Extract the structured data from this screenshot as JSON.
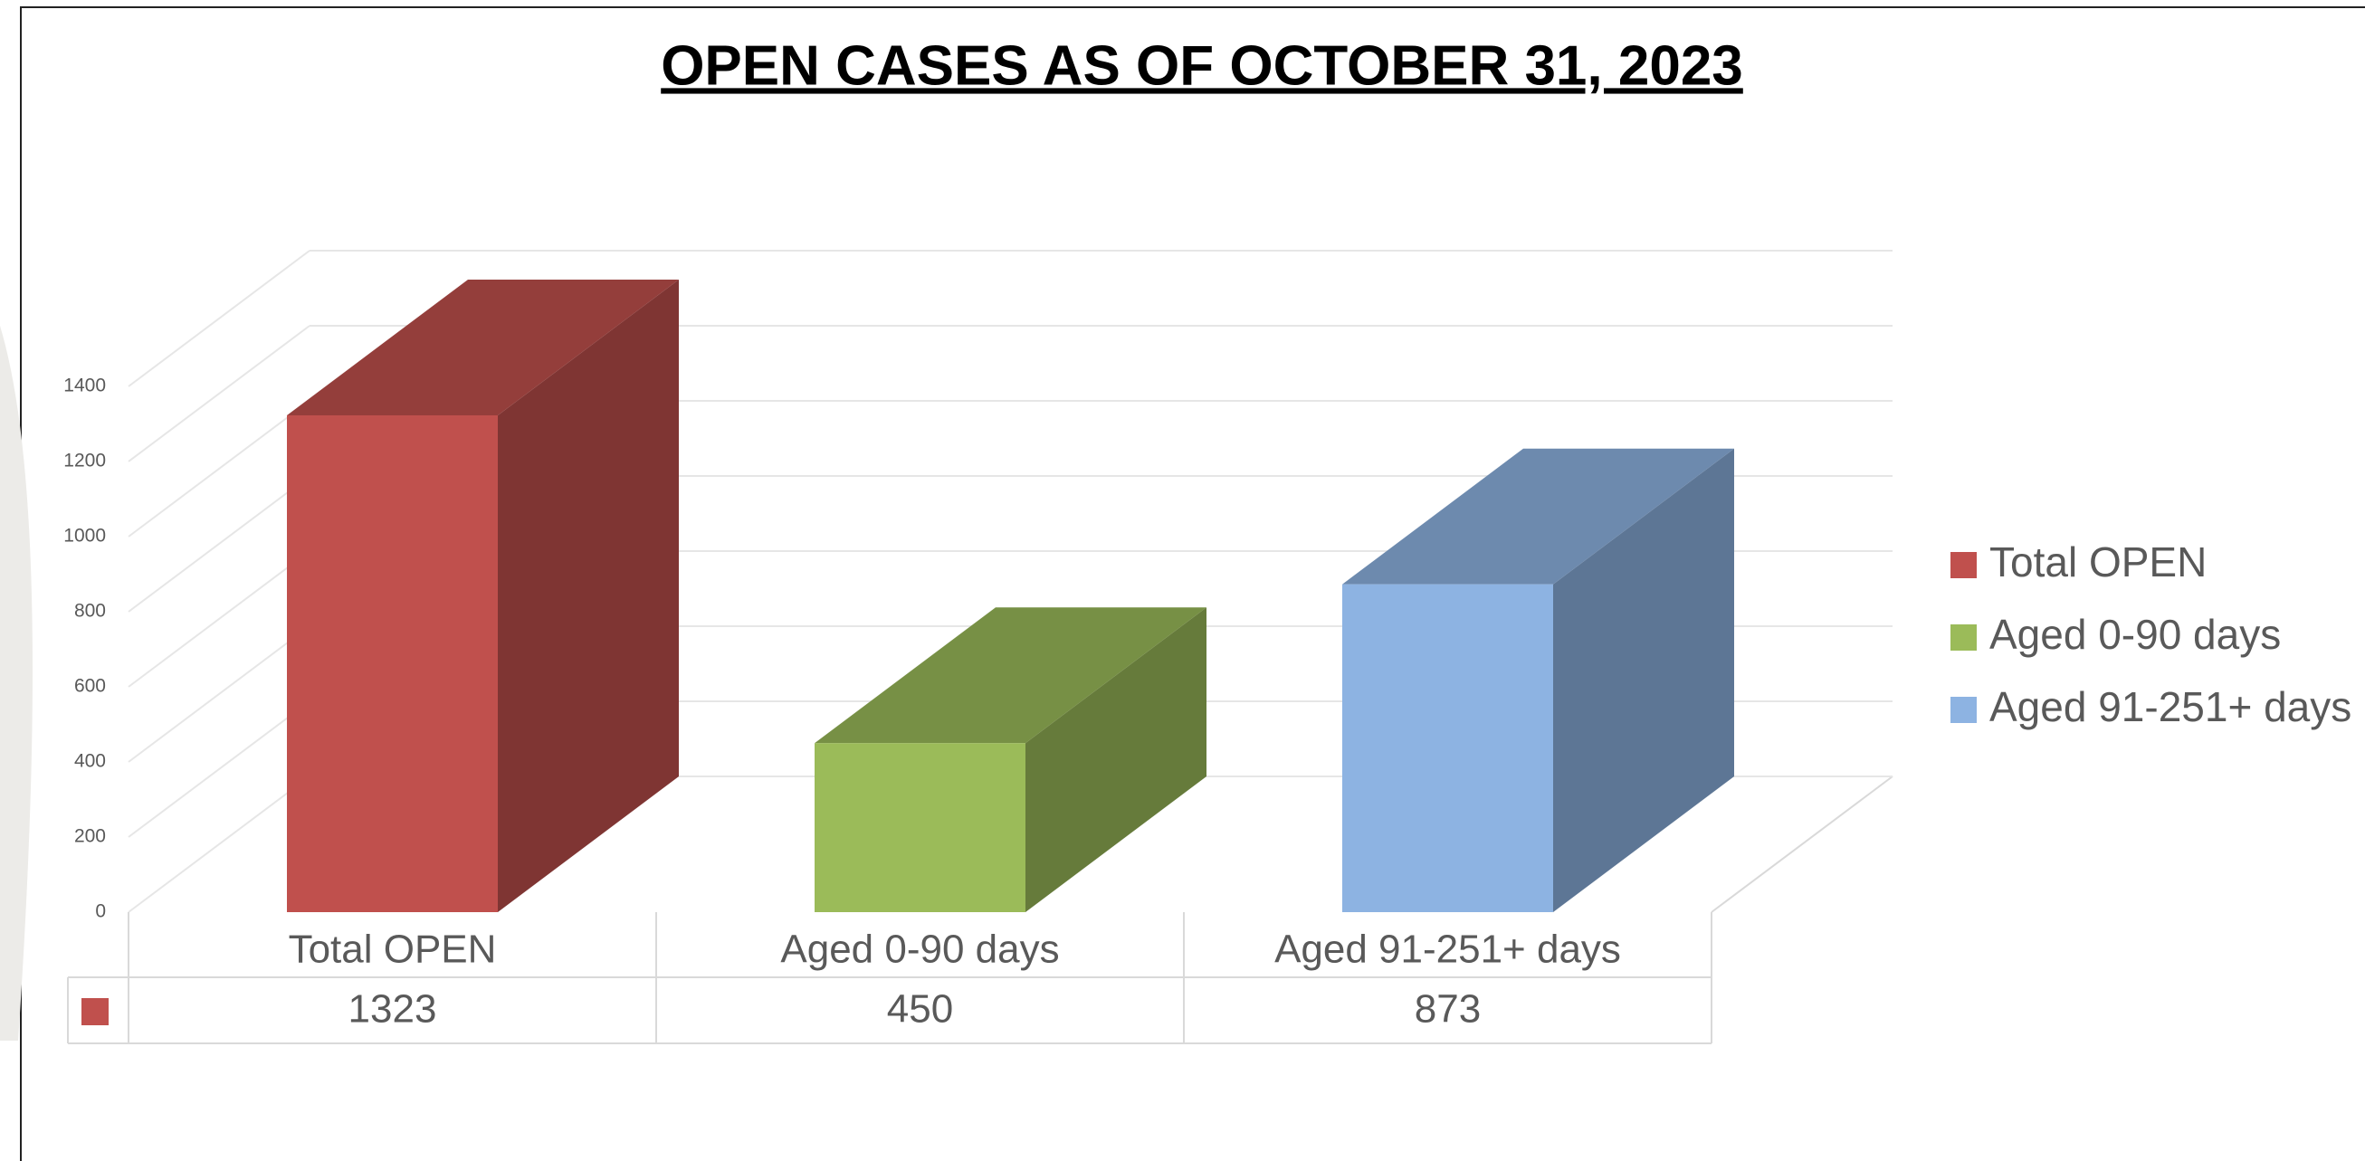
{
  "chart_data": {
    "type": "bar3d",
    "title": "OPEN CASES AS OF OCTOBER 31, 2023",
    "categories": [
      "Total OPEN",
      "Aged 0-90 days",
      "Aged 91-251+ days"
    ],
    "values": [
      1323,
      450,
      873
    ],
    "colors": [
      "#c0504d",
      "#9bbb59",
      "#8db3e2"
    ],
    "ylim": [
      0,
      1400
    ],
    "yticks": [
      0,
      200,
      400,
      600,
      800,
      1000,
      1200,
      1400
    ],
    "grid": true,
    "legend": "right",
    "data_table": true
  }
}
